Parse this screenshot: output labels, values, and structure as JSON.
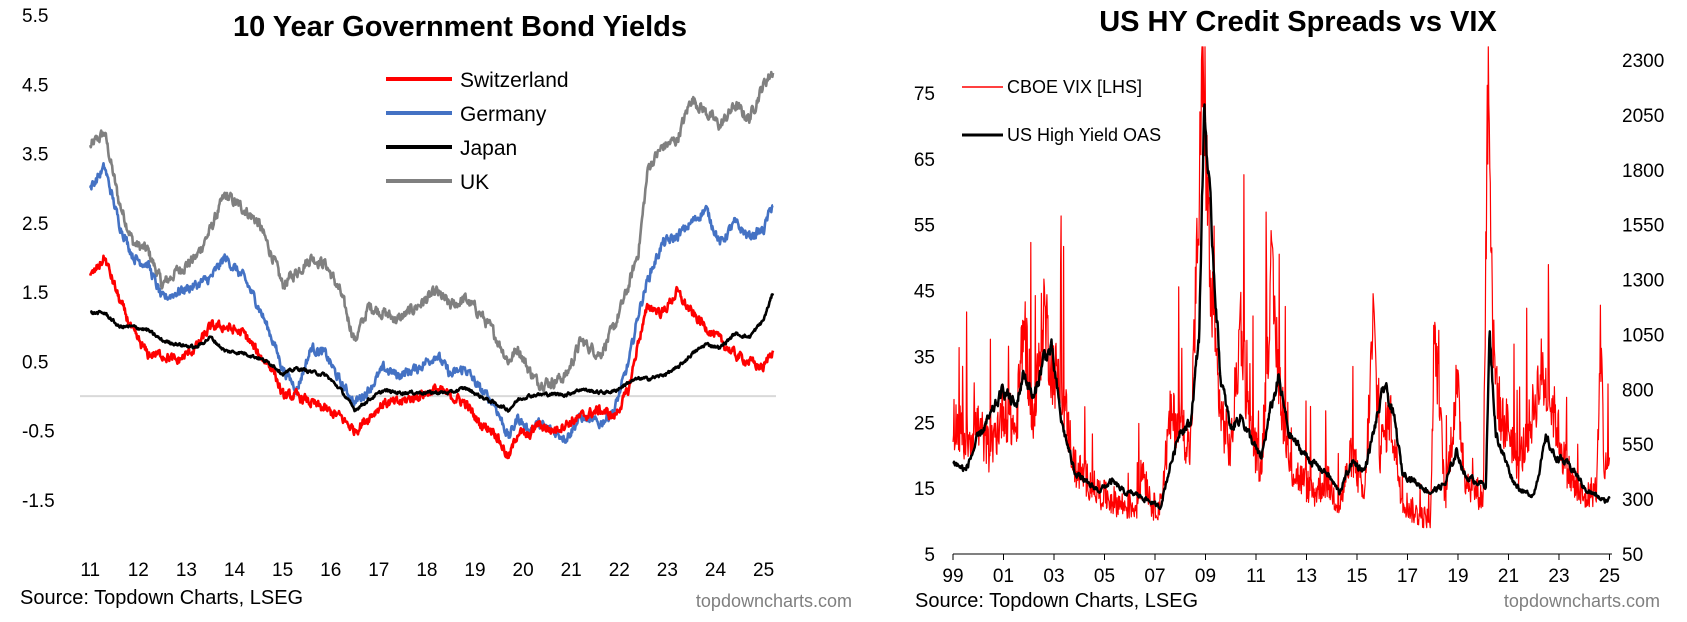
{
  "chart_data": [
    {
      "type": "line",
      "title": "10 Year Government Bond Yields",
      "y_ticks": [
        "5.5",
        "4.5",
        "3.5",
        "2.5",
        "1.5",
        "0.5",
        "-0.5",
        "-1.5"
      ],
      "x_ticks": [
        "11",
        "12",
        "13",
        "14",
        "15",
        "16",
        "17",
        "18",
        "19",
        "20",
        "21",
        "22",
        "23",
        "24",
        "25"
      ],
      "ylim": [
        -1.5,
        5.5
      ],
      "xlim": [
        2010.85,
        2025.3
      ],
      "zero_line": true,
      "legend_position": "top-center",
      "series": [
        {
          "name": "Switzerland",
          "color": "#ff0000",
          "x": [
            2011.0,
            2011.3,
            2011.6,
            2011.9,
            2012.2,
            2012.5,
            2012.8,
            2013.2,
            2013.5,
            2013.8,
            2014.2,
            2014.5,
            2014.8,
            2015.0,
            2015.3,
            2015.6,
            2015.9,
            2016.2,
            2016.5,
            2016.8,
            2017.1,
            2017.4,
            2017.8,
            2018.2,
            2018.5,
            2018.8,
            2019.1,
            2019.4,
            2019.7,
            2019.9,
            2020.1,
            2020.3,
            2020.6,
            2020.9,
            2021.2,
            2021.6,
            2021.9,
            2022.2,
            2022.4,
            2022.6,
            2022.9,
            2023.2,
            2023.5,
            2023.8,
            2024.1,
            2024.4,
            2024.7,
            2025.0,
            2025.2
          ],
          "values": [
            1.7,
            2.0,
            1.4,
            0.9,
            0.6,
            0.6,
            0.5,
            0.7,
            1.0,
            1.0,
            0.9,
            0.6,
            0.4,
            0.0,
            0.0,
            -0.1,
            -0.2,
            -0.3,
            -0.5,
            -0.3,
            -0.1,
            -0.1,
            0.0,
            0.1,
            0.0,
            -0.1,
            -0.4,
            -0.5,
            -0.9,
            -0.5,
            -0.6,
            -0.4,
            -0.5,
            -0.4,
            -0.3,
            -0.2,
            -0.3,
            0.1,
            0.8,
            1.3,
            1.2,
            1.5,
            1.2,
            1.0,
            0.8,
            0.6,
            0.5,
            0.4,
            0.7
          ]
        },
        {
          "name": "Germany",
          "color": "#4472c4",
          "x": [
            2011.0,
            2011.3,
            2011.6,
            2011.9,
            2012.2,
            2012.5,
            2012.8,
            2013.2,
            2013.5,
            2013.8,
            2014.2,
            2014.5,
            2014.8,
            2015.0,
            2015.3,
            2015.6,
            2015.9,
            2016.2,
            2016.5,
            2016.8,
            2017.1,
            2017.4,
            2017.8,
            2018.2,
            2018.5,
            2018.8,
            2019.1,
            2019.4,
            2019.7,
            2019.9,
            2020.1,
            2020.3,
            2020.6,
            2020.9,
            2021.2,
            2021.6,
            2021.9,
            2022.2,
            2022.4,
            2022.6,
            2022.9,
            2023.2,
            2023.5,
            2023.8,
            2024.1,
            2024.4,
            2024.7,
            2025.0,
            2025.2
          ],
          "values": [
            3.0,
            3.3,
            2.5,
            2.0,
            1.9,
            1.4,
            1.5,
            1.6,
            1.7,
            2.0,
            1.7,
            1.3,
            0.8,
            0.4,
            0.1,
            0.7,
            0.6,
            0.2,
            -0.1,
            0.1,
            0.4,
            0.3,
            0.4,
            0.6,
            0.3,
            0.4,
            0.1,
            -0.1,
            -0.6,
            -0.3,
            -0.5,
            -0.4,
            -0.5,
            -0.6,
            -0.3,
            -0.4,
            -0.2,
            0.5,
            1.2,
            1.7,
            2.2,
            2.3,
            2.5,
            2.7,
            2.2,
            2.5,
            2.3,
            2.4,
            2.8
          ]
        },
        {
          "name": "Japan",
          "color": "#000000",
          "x": [
            2011.0,
            2011.3,
            2011.6,
            2011.9,
            2012.2,
            2012.5,
            2012.8,
            2013.2,
            2013.5,
            2013.8,
            2014.2,
            2014.5,
            2014.8,
            2015.0,
            2015.3,
            2015.6,
            2015.9,
            2016.2,
            2016.5,
            2016.8,
            2017.1,
            2017.4,
            2017.8,
            2018.2,
            2018.5,
            2018.8,
            2019.1,
            2019.4,
            2019.7,
            2019.9,
            2020.1,
            2020.3,
            2020.6,
            2020.9,
            2021.2,
            2021.6,
            2021.9,
            2022.2,
            2022.4,
            2022.6,
            2022.9,
            2023.2,
            2023.5,
            2023.8,
            2024.1,
            2024.4,
            2024.7,
            2025.0,
            2025.2
          ],
          "values": [
            1.2,
            1.2,
            1.0,
            1.0,
            0.95,
            0.8,
            0.75,
            0.7,
            0.85,
            0.65,
            0.62,
            0.55,
            0.45,
            0.32,
            0.4,
            0.35,
            0.3,
            0.1,
            -0.2,
            -0.05,
            0.08,
            0.05,
            0.05,
            0.05,
            0.05,
            0.12,
            0.0,
            -0.1,
            -0.2,
            -0.05,
            0.0,
            0.02,
            0.03,
            0.02,
            0.1,
            0.05,
            0.07,
            0.2,
            0.25,
            0.25,
            0.3,
            0.4,
            0.6,
            0.75,
            0.7,
            0.9,
            0.85,
            1.1,
            1.5
          ]
        },
        {
          "name": "UK",
          "color": "#808080",
          "x": [
            2011.0,
            2011.3,
            2011.6,
            2011.9,
            2012.2,
            2012.5,
            2012.8,
            2013.2,
            2013.5,
            2013.8,
            2014.2,
            2014.5,
            2014.8,
            2015.0,
            2015.3,
            2015.6,
            2015.9,
            2016.2,
            2016.5,
            2016.8,
            2017.1,
            2017.4,
            2017.8,
            2018.2,
            2018.5,
            2018.8,
            2019.1,
            2019.4,
            2019.7,
            2019.9,
            2020.1,
            2020.3,
            2020.6,
            2020.9,
            2021.2,
            2021.6,
            2021.9,
            2022.2,
            2022.4,
            2022.6,
            2022.9,
            2023.2,
            2023.5,
            2023.8,
            2024.1,
            2024.4,
            2024.7,
            2025.0,
            2025.2
          ],
          "values": [
            3.6,
            3.8,
            2.8,
            2.2,
            2.1,
            1.6,
            1.8,
            2.0,
            2.4,
            2.9,
            2.7,
            2.5,
            2.0,
            1.6,
            1.8,
            2.0,
            1.9,
            1.5,
            0.8,
            1.3,
            1.2,
            1.1,
            1.3,
            1.5,
            1.3,
            1.4,
            1.2,
            0.9,
            0.5,
            0.7,
            0.4,
            0.2,
            0.2,
            0.3,
            0.8,
            0.6,
            1.0,
            1.6,
            2.1,
            3.3,
            3.6,
            3.7,
            4.3,
            4.1,
            3.9,
            4.2,
            4.0,
            4.5,
            4.7
          ]
        }
      ],
      "source": "Source: Topdown Charts, LSEG",
      "watermark": "topdowncharts.com"
    },
    {
      "type": "line",
      "title": "US HY Credit Spreads vs VIX",
      "y_left_ticks": [
        "75",
        "65",
        "55",
        "45",
        "35",
        "25",
        "15",
        "5"
      ],
      "y_right_ticks": [
        "2300",
        "2050",
        "1800",
        "1550",
        "1300",
        "1050",
        "800",
        "550",
        "300",
        "50"
      ],
      "x_ticks": [
        "99",
        "01",
        "03",
        "05",
        "07",
        "09",
        "11",
        "13",
        "15",
        "17",
        "19",
        "21",
        "23",
        "25"
      ],
      "ylim_left": [
        5,
        80
      ],
      "ylim_right": [
        50,
        2300
      ],
      "xlim": [
        1999.0,
        2025.1
      ],
      "legend_position": "top-left",
      "series": [
        {
          "name": "CBOE VIX [LHS]",
          "color": "#ff0000",
          "axis": "left",
          "x": [
            1999.0,
            1999.5,
            2000.0,
            2000.5,
            2001.0,
            2001.5,
            2001.8,
            2002.2,
            2002.6,
            2002.9,
            2003.3,
            2003.8,
            2004.3,
            2004.8,
            2005.3,
            2005.8,
            2006.3,
            2006.5,
            2006.9,
            2007.2,
            2007.6,
            2008.0,
            2008.4,
            2008.75,
            2008.9,
            2009.2,
            2009.6,
            2010.0,
            2010.4,
            2010.7,
            2011.2,
            2011.6,
            2011.9,
            2012.3,
            2012.8,
            2013.3,
            2013.8,
            2014.3,
            2014.8,
            2015.3,
            2015.65,
            2015.9,
            2016.3,
            2016.8,
            2017.3,
            2017.9,
            2018.1,
            2018.5,
            2018.95,
            2019.3,
            2019.8,
            2020.0,
            2020.2,
            2020.4,
            2020.7,
            2021.0,
            2021.4,
            2021.9,
            2022.3,
            2022.8,
            2023.2,
            2023.6,
            2024.0,
            2024.5,
            2024.65,
            2024.8,
            2025.0
          ],
          "values": [
            25,
            22,
            24,
            20,
            27,
            23,
            40,
            24,
            42,
            33,
            30,
            18,
            16,
            14,
            13,
            12,
            12,
            18,
            12,
            12,
            25,
            25,
            20,
            58,
            80,
            44,
            26,
            20,
            40,
            25,
            17,
            46,
            32,
            18,
            16,
            14,
            16,
            12,
            20,
            13,
            40,
            20,
            26,
            13,
            11,
            10,
            37,
            13,
            30,
            16,
            14,
            13,
            82,
            35,
            25,
            24,
            18,
            25,
            32,
            26,
            19,
            15,
            13,
            15,
            38,
            17,
            19
          ]
        },
        {
          "name": "US High Yield OAS",
          "color": "#000000",
          "axis": "right",
          "x": [
            1999.0,
            1999.5,
            2000.0,
            2000.5,
            2001.0,
            2001.5,
            2001.8,
            2002.2,
            2002.6,
            2002.9,
            2003.3,
            2003.8,
            2004.3,
            2004.8,
            2005.3,
            2005.8,
            2006.3,
            2006.8,
            2007.2,
            2007.6,
            2008.0,
            2008.4,
            2008.75,
            2008.95,
            2009.2,
            2009.6,
            2010.0,
            2010.4,
            2010.7,
            2011.2,
            2011.6,
            2011.9,
            2012.3,
            2012.8,
            2013.3,
            2013.8,
            2014.3,
            2014.8,
            2015.3,
            2015.65,
            2016.1,
            2016.5,
            2016.8,
            2017.3,
            2017.9,
            2018.5,
            2018.95,
            2019.3,
            2019.8,
            2020.1,
            2020.25,
            2020.5,
            2020.8,
            2021.2,
            2021.6,
            2022.0,
            2022.5,
            2022.8,
            2023.2,
            2023.6,
            2024.0,
            2024.4,
            2024.8,
            2025.0
          ],
          "values": [
            470,
            430,
            580,
            680,
            800,
            720,
            880,
            750,
            950,
            980,
            650,
            430,
            370,
            340,
            380,
            330,
            320,
            290,
            260,
            450,
            620,
            640,
            1050,
            2100,
            1600,
            850,
            620,
            680,
            600,
            480,
            720,
            850,
            600,
            520,
            460,
            420,
            330,
            470,
            430,
            600,
            820,
            650,
            420,
            380,
            330,
            370,
            520,
            400,
            380,
            360,
            1050,
            600,
            500,
            380,
            330,
            320,
            580,
            500,
            470,
            430,
            350,
            320,
            290,
            300
          ]
        }
      ],
      "source": "Source: Topdown Charts, LSEG",
      "watermark": "topdowncharts.com"
    }
  ]
}
